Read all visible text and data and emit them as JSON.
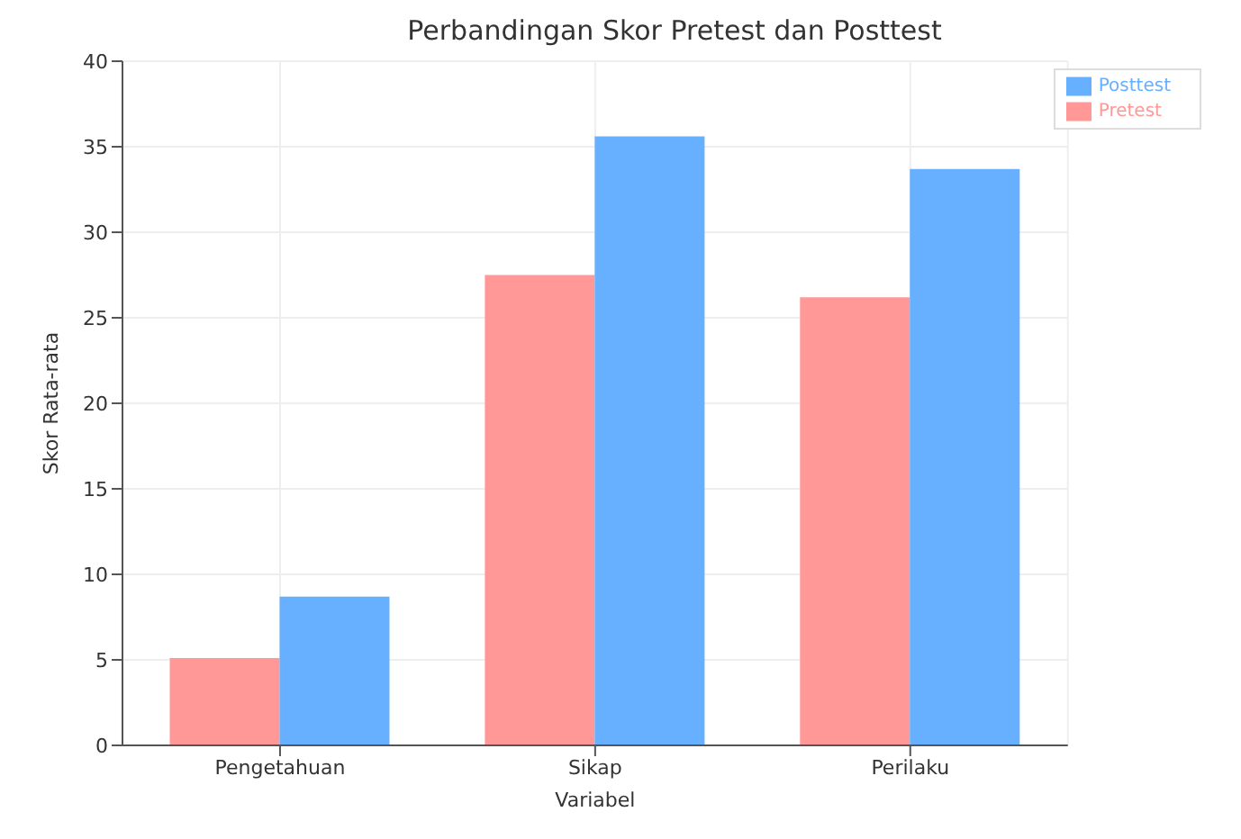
{
  "chart_data": {
    "type": "bar",
    "title": "Perbandingan Skor Pretest dan Posttest",
    "xlabel": "Variabel",
    "ylabel": "Skor Rata-rata",
    "categories": [
      "Pengetahuan",
      "Sikap",
      "Perilaku"
    ],
    "series": [
      {
        "name": "Pretest",
        "color": "#ff9896",
        "values": [
          5.1,
          27.5,
          26.2
        ]
      },
      {
        "name": "Posttest",
        "color": "#66b0ff",
        "values": [
          8.7,
          35.6,
          33.7
        ]
      }
    ],
    "ylim": [
      0,
      40
    ],
    "yticks": [
      0,
      5,
      10,
      15,
      20,
      25,
      30,
      35,
      40
    ],
    "grid": true,
    "legend": "top right"
  }
}
